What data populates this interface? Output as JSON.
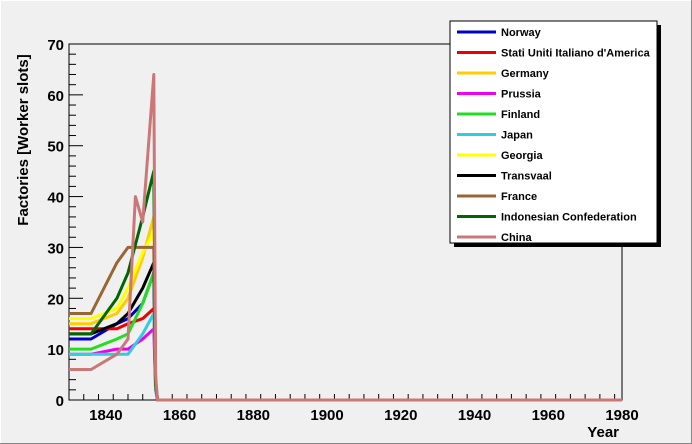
{
  "chart_data": {
    "type": "line",
    "title": "",
    "xlabel": "Year",
    "ylabel": "Factories [Worker slots]",
    "xlim": [
      1830,
      1980
    ],
    "ylim": [
      0,
      70
    ],
    "x_ticks": [
      1840,
      1860,
      1880,
      1900,
      1920,
      1940,
      1960,
      1980
    ],
    "y_ticks": [
      0,
      10,
      20,
      30,
      40,
      50,
      60,
      70
    ],
    "grid": false,
    "legend_position": "top-right",
    "series": [
      {
        "name": "Norway",
        "color": "#0000cc",
        "points": [
          [
            1830,
            12
          ],
          [
            1836,
            12
          ],
          [
            1843,
            15
          ],
          [
            1846,
            16
          ],
          [
            1850,
            19
          ],
          [
            1853,
            25
          ],
          [
            1853.5,
            3
          ],
          [
            1854,
            0
          ],
          [
            1980,
            0
          ]
        ]
      },
      {
        "name": "Stati Uniti Italiano d'America",
        "color": "#ee0000",
        "points": [
          [
            1830,
            14
          ],
          [
            1836,
            14
          ],
          [
            1843,
            14
          ],
          [
            1846,
            15
          ],
          [
            1850,
            16
          ],
          [
            1853,
            18
          ],
          [
            1853.5,
            3
          ],
          [
            1854,
            0
          ],
          [
            1980,
            0
          ]
        ]
      },
      {
        "name": "Germany",
        "color": "#ffcc00",
        "points": [
          [
            1830,
            15
          ],
          [
            1836,
            15
          ],
          [
            1843,
            17
          ],
          [
            1846,
            20
          ],
          [
            1850,
            28
          ],
          [
            1853,
            36
          ],
          [
            1853.5,
            3
          ],
          [
            1854,
            0
          ],
          [
            1980,
            0
          ]
        ]
      },
      {
        "name": "Prussia",
        "color": "#ee00ee",
        "points": [
          [
            1830,
            9
          ],
          [
            1836,
            9
          ],
          [
            1843,
            10
          ],
          [
            1846,
            10
          ],
          [
            1850,
            12
          ],
          [
            1853,
            14
          ],
          [
            1853.5,
            2
          ],
          [
            1854,
            0
          ],
          [
            1980,
            0
          ]
        ]
      },
      {
        "name": "Finland",
        "color": "#22dd22",
        "points": [
          [
            1830,
            10
          ],
          [
            1836,
            10
          ],
          [
            1843,
            12
          ],
          [
            1846,
            13
          ],
          [
            1850,
            19
          ],
          [
            1853,
            25
          ],
          [
            1853.5,
            3
          ],
          [
            1854,
            0
          ],
          [
            1980,
            0
          ]
        ]
      },
      {
        "name": "Japan",
        "color": "#33ccdd",
        "points": [
          [
            1830,
            9
          ],
          [
            1836,
            9
          ],
          [
            1843,
            9
          ],
          [
            1846,
            9
          ],
          [
            1850,
            13
          ],
          [
            1853,
            17
          ],
          [
            1853.5,
            2
          ],
          [
            1854,
            0
          ],
          [
            1980,
            0
          ]
        ]
      },
      {
        "name": "Georgia",
        "color": "#ffff00",
        "points": [
          [
            1830,
            16
          ],
          [
            1836,
            16
          ],
          [
            1843,
            18
          ],
          [
            1846,
            22
          ],
          [
            1850,
            29
          ],
          [
            1853,
            33
          ],
          [
            1853.5,
            3
          ],
          [
            1854,
            0
          ],
          [
            1980,
            0
          ]
        ]
      },
      {
        "name": "Transvaal",
        "color": "#000000",
        "points": [
          [
            1830,
            13
          ],
          [
            1836,
            13
          ],
          [
            1843,
            15
          ],
          [
            1846,
            17
          ],
          [
            1850,
            22
          ],
          [
            1853,
            27
          ],
          [
            1853.5,
            3
          ],
          [
            1854,
            0
          ],
          [
            1980,
            0
          ]
        ]
      },
      {
        "name": "France",
        "color": "#996633",
        "points": [
          [
            1830,
            17
          ],
          [
            1836,
            17
          ],
          [
            1843,
            27
          ],
          [
            1846,
            30
          ],
          [
            1850,
            30
          ],
          [
            1853,
            30
          ],
          [
            1853.5,
            3
          ],
          [
            1854,
            0
          ],
          [
            1980,
            0
          ]
        ]
      },
      {
        "name": "Indonesian Confederation",
        "color": "#006600",
        "points": [
          [
            1830,
            13
          ],
          [
            1836,
            13
          ],
          [
            1843,
            20
          ],
          [
            1846,
            25
          ],
          [
            1850,
            36
          ],
          [
            1853,
            45
          ],
          [
            1853.5,
            4
          ],
          [
            1854,
            0
          ],
          [
            1980,
            0
          ]
        ]
      },
      {
        "name": "China",
        "color": "#cc7777",
        "points": [
          [
            1830,
            6
          ],
          [
            1836,
            6
          ],
          [
            1843,
            9
          ],
          [
            1846,
            12
          ],
          [
            1848,
            40
          ],
          [
            1850,
            35
          ],
          [
            1853,
            64
          ],
          [
            1853.5,
            5
          ],
          [
            1854,
            0
          ],
          [
            1980,
            0
          ]
        ]
      }
    ]
  }
}
